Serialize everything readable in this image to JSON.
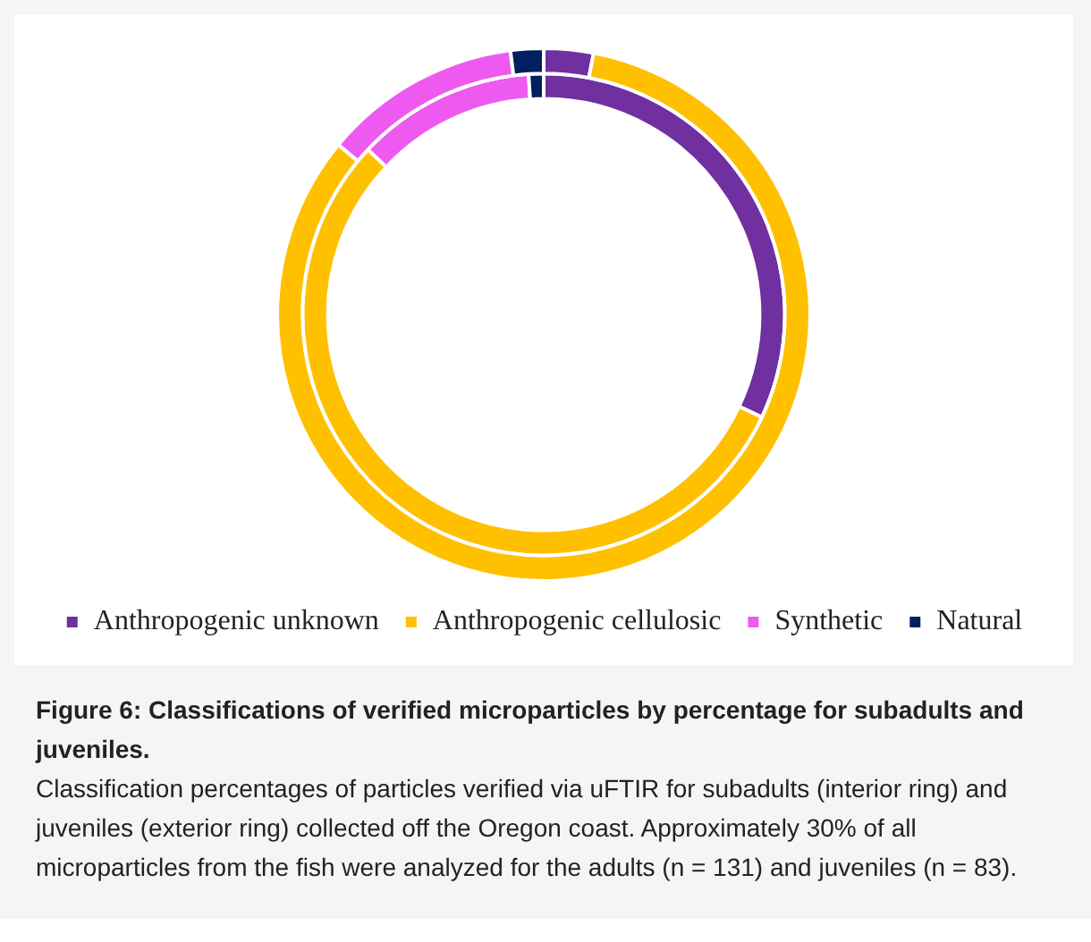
{
  "chart_data": {
    "type": "donut",
    "title": "Figure 6: Classifications of verified microparticles by percentage for subadults and juveniles.",
    "annotations": [
      "Classification percentages of particles verified via uFTIR for subadults (interior ring) and juveniles (exterior ring) collected off the Oregon coast. Approximately 30% of all microparticles from the fish were analyzed for the adults (n = 131) and juveniles (n = 83)."
    ],
    "categories": [
      "Anthropogenic unknown",
      "Anthropogenic cellulosic",
      "Synthetic",
      "Natural"
    ],
    "colors": [
      "#7030a0",
      "#ffc000",
      "#ee5af0",
      "#002060"
    ],
    "series": [
      {
        "values": [
          3,
          83,
          12,
          2
        ]
      },
      {
        "values": [
          32,
          55,
          12,
          1
        ]
      }
    ],
    "legend": "bottom"
  }
}
